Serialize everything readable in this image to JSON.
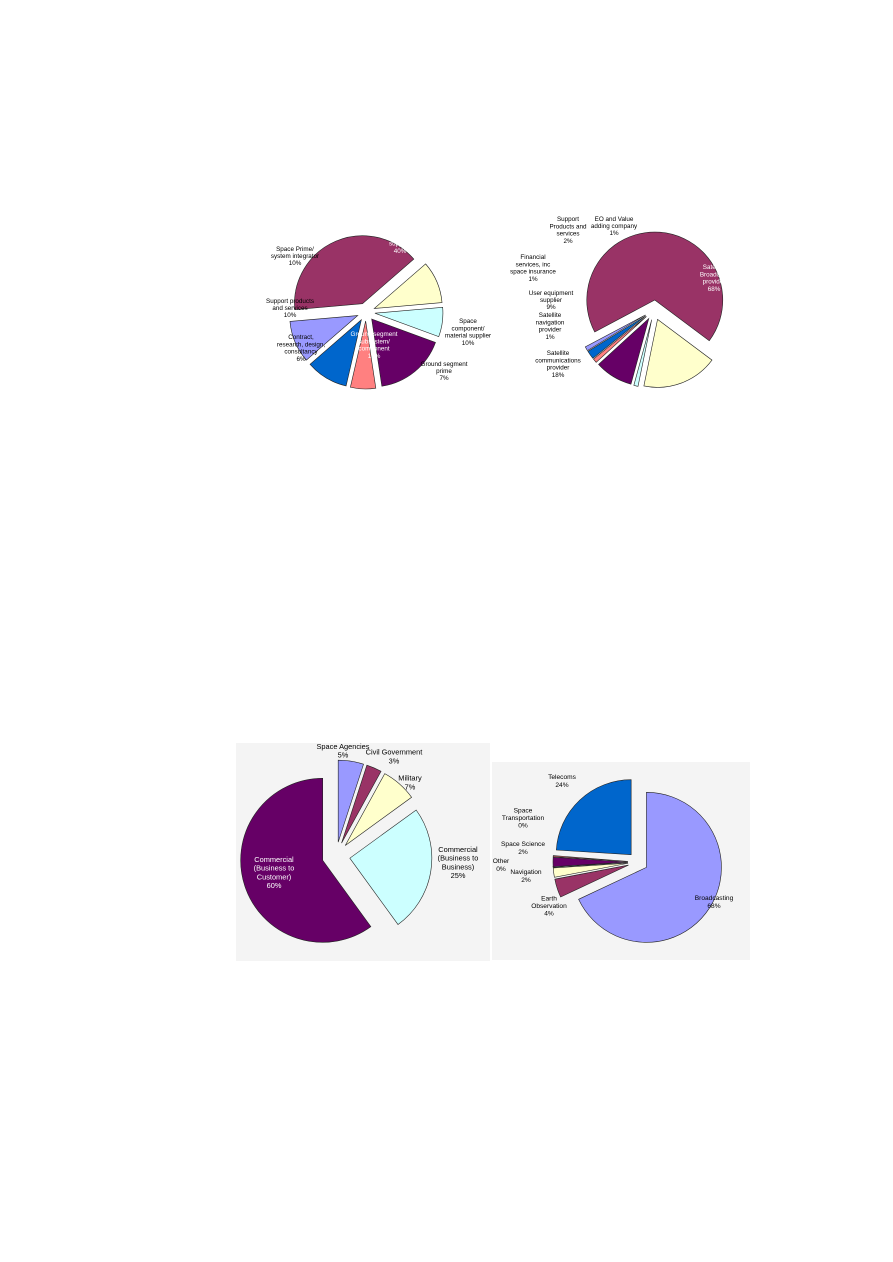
{
  "chart_data": [
    {
      "type": "pie",
      "slices": [
        {
          "label": [
            "Space",
            "subsystem",
            "supplier",
            "40%"
          ],
          "value": 40,
          "color": "#993366",
          "exploded": true,
          "inside": true
        },
        {
          "label": [
            "Space",
            "component/",
            "material supplier",
            "10%"
          ],
          "value": 10,
          "color": "#ffffcc",
          "exploded": true
        },
        {
          "label": [
            "Ground segment",
            "prime",
            "7%"
          ],
          "value": 7,
          "color": "#ccffff",
          "exploded": true
        },
        {
          "label": [
            "Ground segment",
            "subsystem/",
            "component",
            "17%"
          ],
          "value": 17,
          "color": "#660066",
          "exploded": true,
          "inside": true
        },
        {
          "label": [
            "Contract,",
            "research, design,",
            "consultancy",
            "6%"
          ],
          "value": 6,
          "color": "#ff8080",
          "exploded": true
        },
        {
          "label": [
            "Support products",
            "and services",
            "10%"
          ],
          "value": 10,
          "color": "#0066cc",
          "exploded": true
        },
        {
          "label": [
            "Space Prime/",
            "system integrator",
            "10%"
          ],
          "value": 10,
          "color": "#9999ff",
          "exploded": true
        }
      ]
    },
    {
      "type": "pie",
      "slices": [
        {
          "label": [
            "Satellite",
            "Broadcast",
            "provider",
            "68%"
          ],
          "value": 68,
          "color": "#993366",
          "exploded": true,
          "inside": true
        },
        {
          "label": [
            "Satellite",
            "communications",
            "provider",
            "18%"
          ],
          "value": 18,
          "color": "#ffffcc",
          "exploded": true
        },
        {
          "label": [
            "Satellite",
            "navigation",
            "provider",
            "1%"
          ],
          "value": 1,
          "color": "#ccffff",
          "exploded": true
        },
        {
          "label": [
            "User equipment",
            "supplier",
            "9%"
          ],
          "value": 9,
          "color": "#660066",
          "exploded": true
        },
        {
          "label": [
            "Financial",
            "services, inc",
            "space insurance",
            "1%"
          ],
          "value": 1,
          "color": "#ff8080",
          "exploded": true
        },
        {
          "label": [
            "Support",
            "Products and",
            "services",
            "2%"
          ],
          "value": 2,
          "color": "#0066cc",
          "exploded": true
        },
        {
          "label": [
            "EO and Value",
            "adding company",
            "1%"
          ],
          "value": 1,
          "color": "#9999ff",
          "exploded": true
        }
      ]
    },
    {
      "type": "pie",
      "slices": [
        {
          "label": [
            "Space Agencies",
            "5%"
          ],
          "value": 5,
          "color": "#9999ff",
          "exploded": true
        },
        {
          "label": [
            "Civil Government",
            "3%"
          ],
          "value": 3,
          "color": "#993366",
          "exploded": true
        },
        {
          "label": [
            "Military",
            "7%"
          ],
          "value": 7,
          "color": "#ffffcc",
          "exploded": true
        },
        {
          "label": [
            "Commercial",
            "(Business to",
            "Business)",
            "25%"
          ],
          "value": 25,
          "color": "#ccffff",
          "exploded": true
        },
        {
          "label": [
            "Commercial",
            "(Business to",
            "Customer)",
            "60%"
          ],
          "value": 60,
          "color": "#660066",
          "exploded": true,
          "inside": true
        }
      ]
    },
    {
      "type": "pie",
      "slices": [
        {
          "label": [
            "Broadcasting",
            "68%"
          ],
          "value": 68,
          "color": "#9999ff",
          "exploded": true
        },
        {
          "label": [
            "Earth",
            "Observation",
            "4%"
          ],
          "value": 4,
          "color": "#993366",
          "exploded": true
        },
        {
          "label": [
            "Navigation",
            "2%"
          ],
          "value": 2,
          "color": "#ffffcc",
          "exploded": true
        },
        {
          "label": [
            "Other",
            "0%"
          ],
          "value": 0,
          "color": "#ccffff",
          "exploded": true
        },
        {
          "label": [
            "Space Science",
            "2%"
          ],
          "value": 2,
          "color": "#660066",
          "exploded": true
        },
        {
          "label": [
            "Space",
            "Transportation",
            "0%"
          ],
          "value": 0,
          "color": "#ff8080",
          "exploded": true
        },
        {
          "label": [
            "Telecoms",
            "24%"
          ],
          "value": 24,
          "color": "#0066cc",
          "exploded": true
        }
      ]
    }
  ]
}
